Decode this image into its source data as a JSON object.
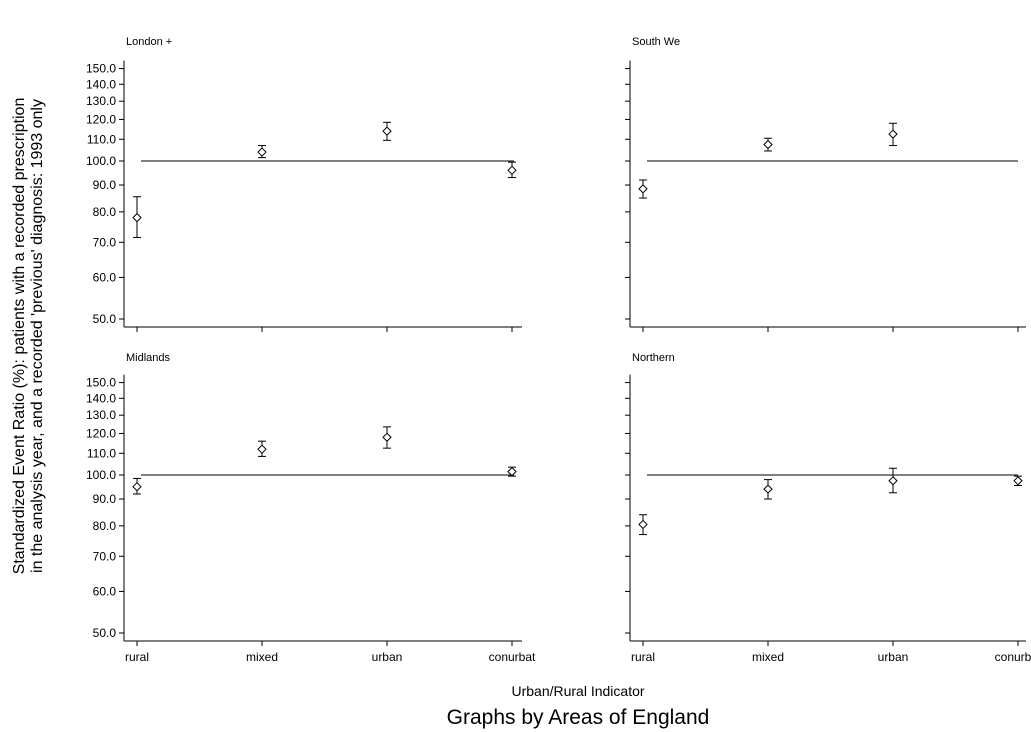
{
  "chart_data": {
    "type": "scatter",
    "ylabel_line1": "Standardized Event Ratio (%): patients with a recorded prescription",
    "ylabel_line2": "in the analysis year, and a recorded 'previous' diagnosis: 1993 only",
    "xlabel": "Urban/Rural Indicator",
    "note": "Graphs by Areas of England",
    "categories": [
      "rural",
      "mixed",
      "urban",
      "conurbat"
    ],
    "y_scale": "log",
    "y_ticks": [
      50,
      60,
      70,
      80,
      90,
      100,
      110,
      120,
      130,
      140,
      150
    ],
    "y_tick_labels": [
      "50.0",
      "60.0",
      "70.0",
      "80.0",
      "90.0",
      "100.0",
      "110.0",
      "120.0",
      "130.0",
      "140.0",
      "150.0"
    ],
    "reference_line": 100,
    "panels": [
      {
        "title": "London +",
        "estimate": [
          78,
          104,
          114,
          96
        ],
        "lower": [
          71.5,
          101.5,
          109.5,
          93
        ],
        "upper": [
          85.5,
          107,
          118.5,
          99.5
        ]
      },
      {
        "title": "South We",
        "estimate": [
          88.5,
          107.5,
          112.5,
          null
        ],
        "lower": [
          85,
          104.5,
          107,
          null
        ],
        "upper": [
          92,
          110.5,
          118,
          null
        ]
      },
      {
        "title": "Midlands",
        "estimate": [
          95,
          112,
          118,
          101.5
        ],
        "lower": [
          92,
          108.5,
          112.5,
          99.5
        ],
        "upper": [
          98.5,
          116,
          123.5,
          103.5
        ]
      },
      {
        "title": "Northern",
        "estimate": [
          80.5,
          94,
          97.5,
          97.5
        ],
        "lower": [
          77,
          90,
          92.5,
          95.5
        ],
        "upper": [
          84,
          98,
          103,
          99.5
        ]
      }
    ]
  }
}
